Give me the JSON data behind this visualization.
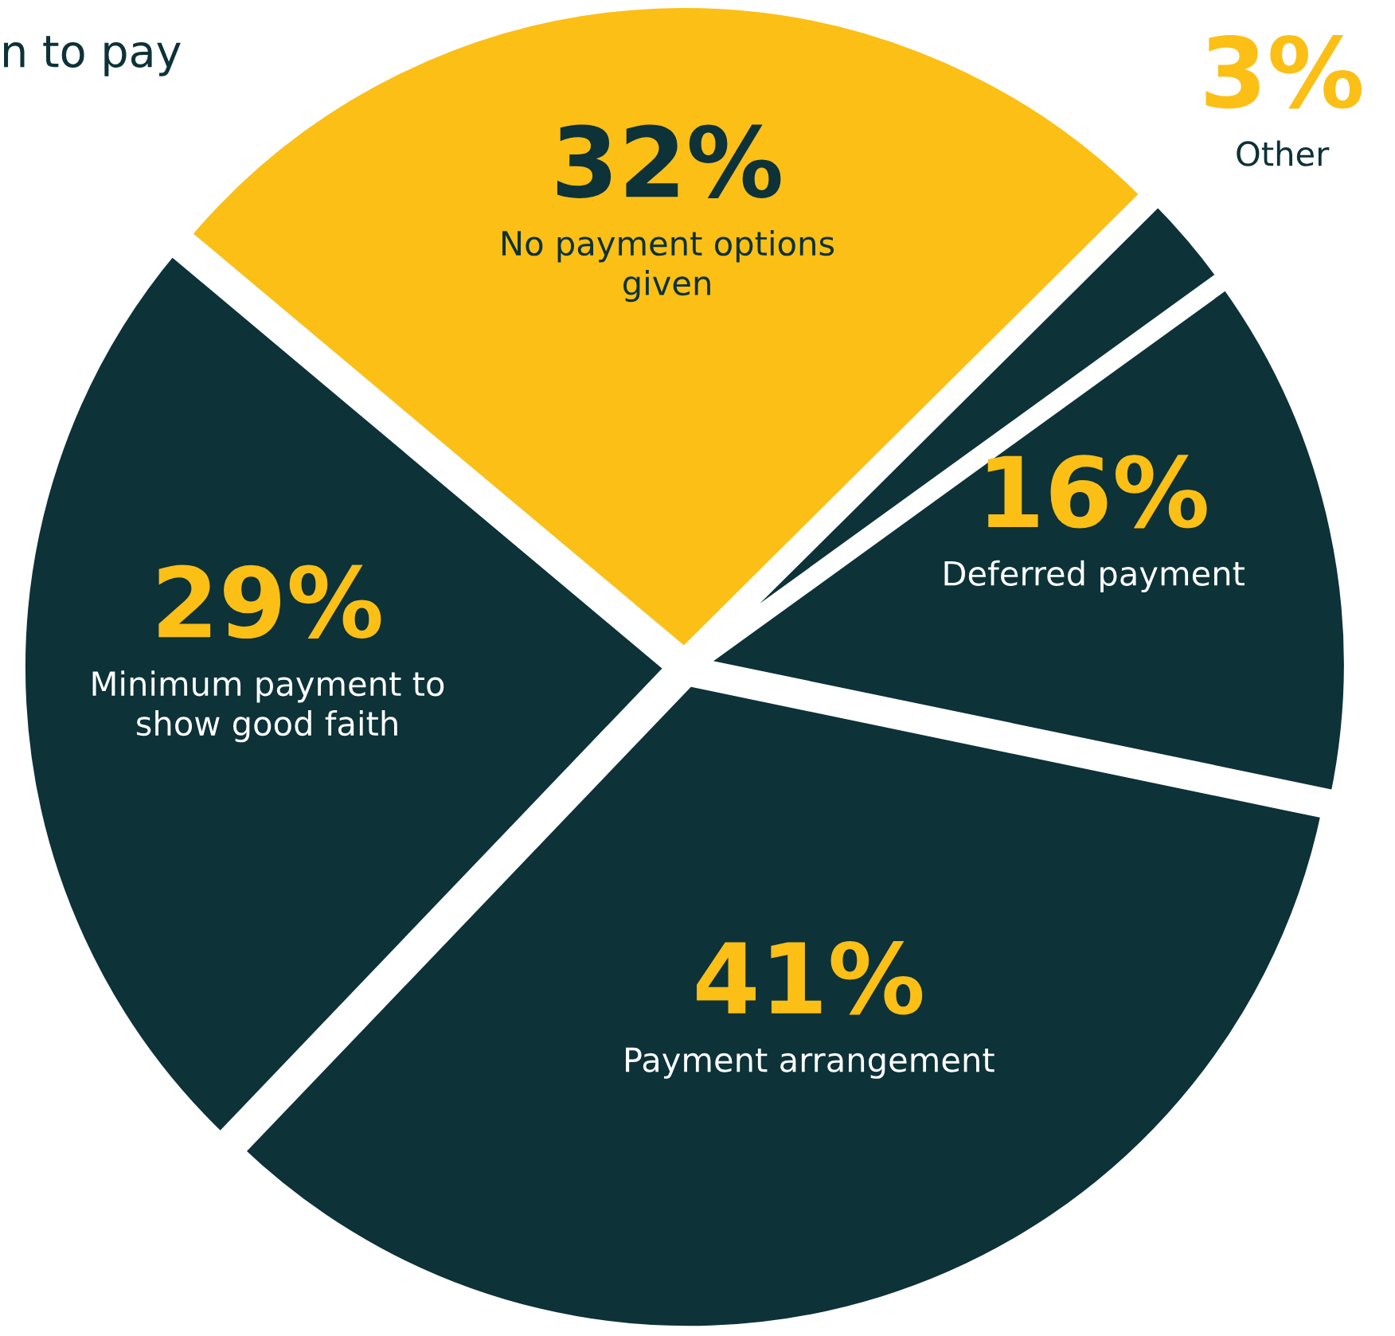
{
  "chart_data": {
    "type": "pie",
    "title": "n to pay",
    "categories": [
      "No payment options given",
      "Other",
      "Deferred payment",
      "Payment arrangement",
      "Minimum payment to show good faith"
    ],
    "values": [
      32,
      3,
      16,
      41,
      29
    ],
    "value_labels": [
      "32%",
      "3%",
      "16%",
      "41%",
      "29%"
    ],
    "colors": [
      "#fbbf16",
      "#0d3238",
      "#0d3238",
      "#0d3238",
      "#0d3238"
    ],
    "legend": false
  }
}
